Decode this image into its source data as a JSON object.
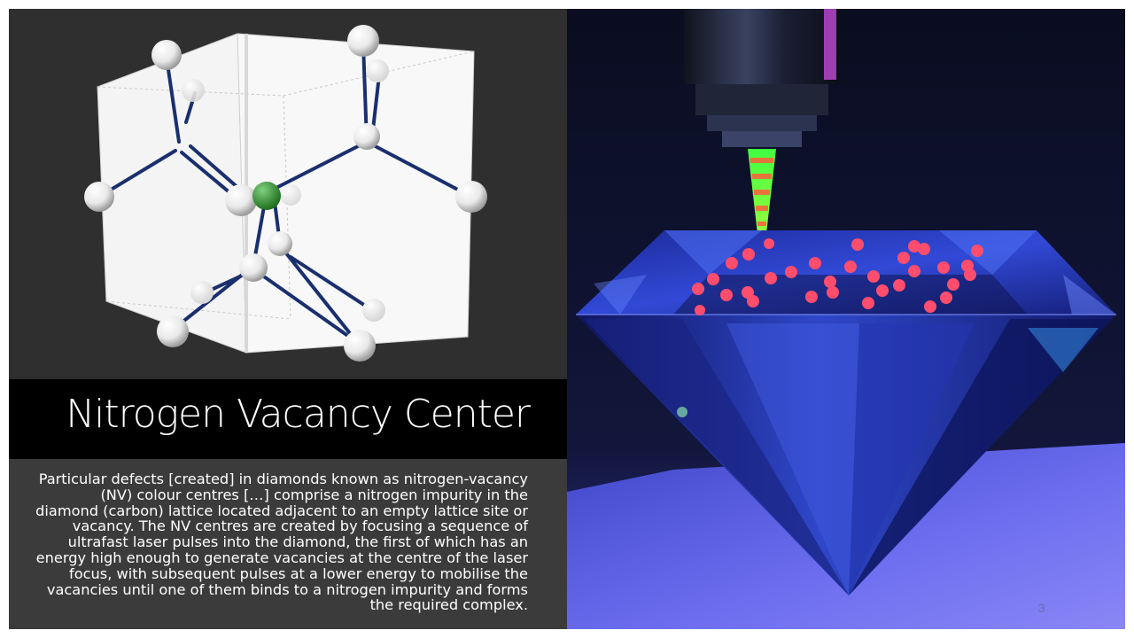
{
  "slide": {
    "title": "Nitrogen Vacancy Center",
    "body": "Particular defects [created] in diamonds known as nitrogen-vacancy (NV) colour centres […] comprise a nitrogen impurity in the diamond (carbon) lattice located adjacent to an empty lattice site or vacancy. The NV centres are created by focusing a sequence of ultrafast laser pulses into the diamond, the first of which has an energy high enough to generate vacancies at the centre of the laser focus, with subsequent pulses at a lower energy to mobilise the vacancies until one of them binds to a nitrogen impurity and forms the required complex.",
    "page_number": "3"
  },
  "colors": {
    "panel_dark": "#2f2f2f",
    "title_bar": "#000000",
    "body_box": "#3b3b3b",
    "bond": "#1a2f6e",
    "nitrogen": "#2f8a2f",
    "laser": "#39e639",
    "defect": "#ff4d6d",
    "diamond": "#2a3fbf"
  },
  "images": {
    "lattice": "nv-center-lattice-diagram",
    "diamond": "laser-writing-diamond-illustration"
  }
}
